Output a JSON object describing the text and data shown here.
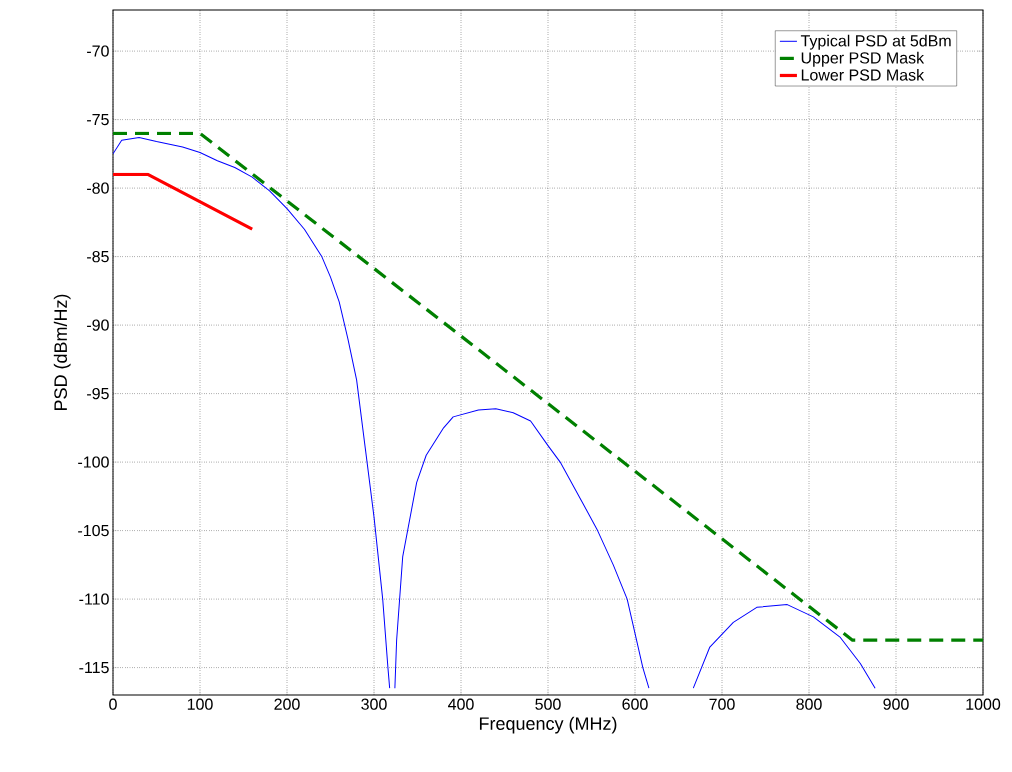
{
  "chart_data": {
    "type": "line",
    "xlabel": "Frequency (MHz)",
    "ylabel": "PSD (dBm/Hz)",
    "xlim": [
      0,
      1000
    ],
    "ylim": [
      -117,
      -67
    ],
    "xticks": [
      0,
      100,
      200,
      300,
      400,
      500,
      600,
      700,
      800,
      900,
      1000
    ],
    "yticks": [
      -115,
      -110,
      -105,
      -100,
      -95,
      -90,
      -85,
      -80,
      -75,
      -70
    ],
    "grid": true,
    "legend": "top right",
    "series": [
      {
        "name": "Typical PSD at 5dBm",
        "color": "#0000ff",
        "line_style": "solid",
        "x": [
          0,
          10,
          30,
          50,
          80,
          100,
          120,
          140,
          160,
          180,
          200,
          220,
          240,
          250,
          260,
          270,
          280,
          290,
          300,
          310,
          316,
          318,
          322,
          324,
          326,
          333,
          349,
          360,
          380,
          391,
          420,
          440,
          460,
          480,
          500,
          514,
          540,
          557,
          575,
          591,
          609,
          616,
          640,
          667,
          686,
          713,
          740,
          775,
          805,
          836,
          859,
          876
        ],
        "values": [
          -77.5,
          -76.5,
          -76.3,
          -76.6,
          -77.0,
          -77.4,
          -78.0,
          -78.5,
          -79.2,
          -80.2,
          -81.5,
          -83.0,
          -85.0,
          -86.5,
          -88.3,
          -91,
          -94,
          -99,
          -104,
          -110,
          -115,
          -116.5,
          null,
          -116.5,
          -113,
          -106.9,
          -101.5,
          -99.5,
          -97.5,
          -96.7,
          -96.2,
          -96.1,
          -96.4,
          -97,
          -98.8,
          -100,
          -103,
          -105,
          -107.5,
          -110,
          -115,
          -116.5,
          null,
          -116.5,
          -113.5,
          -111.7,
          -110.6,
          -110.4,
          -111.3,
          -112.8,
          -114.7,
          -116.5
        ]
      },
      {
        "name": "Upper PSD Mask",
        "color": "#008000",
        "line_style": "dashed",
        "x": [
          0,
          100,
          850,
          1000
        ],
        "values": [
          -76,
          -76,
          -113,
          -113
        ]
      },
      {
        "name": "Lower PSD Mask",
        "color": "#ff0000",
        "line_style": "solid",
        "x": [
          0,
          40,
          160
        ],
        "values": [
          -79,
          -79,
          -83
        ]
      }
    ]
  }
}
